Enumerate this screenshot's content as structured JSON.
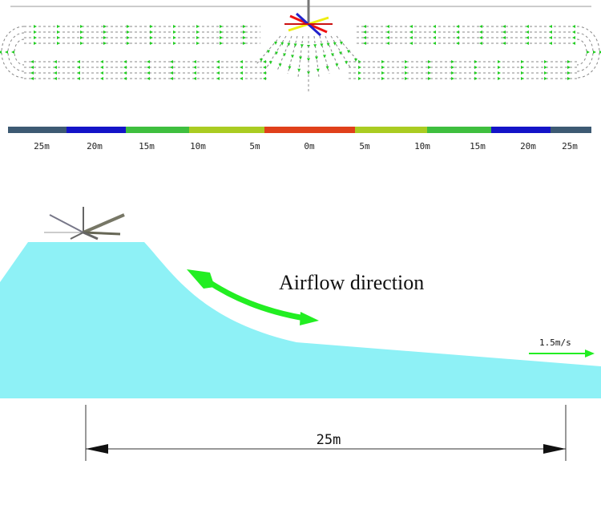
{
  "scale_labels": [
    "25m",
    "20m",
    "15m",
    "10m",
    "5m",
    "0m",
    "5m",
    "10m",
    "15m",
    "20m",
    "25m"
  ],
  "airflow_label": "Airflow direction",
  "speed_label": "1.5m/s",
  "distance_label": "25m"
}
